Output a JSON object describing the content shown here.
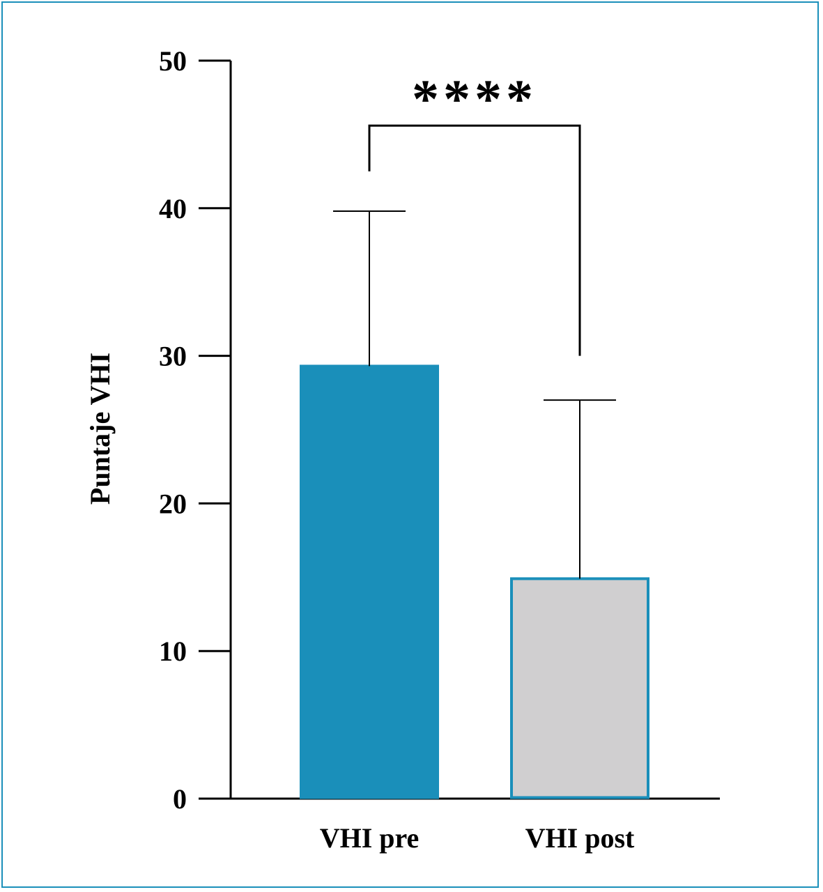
{
  "chart_data": {
    "type": "bar",
    "title": "",
    "xlabel": "",
    "ylabel": "Puntaje VHI",
    "categories": [
      "VHI pre",
      "VHI post"
    ],
    "values": [
      29.3,
      14.9
    ],
    "error_upper": [
      39.8,
      27.0
    ],
    "ylim": [
      0,
      50
    ],
    "yticks": [
      0,
      10,
      20,
      30,
      40,
      50
    ],
    "grid": false,
    "legend": "none",
    "bar_colors": [
      "#1a8fba",
      "#d0cfd0"
    ],
    "bar_outline_colors": [
      "#1a8fba",
      "#1a8fba"
    ],
    "significance": {
      "label": "****",
      "between": [
        "VHI pre",
        "VHI post"
      ],
      "bracket_y": 45.6,
      "left_drop_y": 42.5,
      "right_drop_y": 30.0
    }
  },
  "frame_color": "#1a8fba"
}
